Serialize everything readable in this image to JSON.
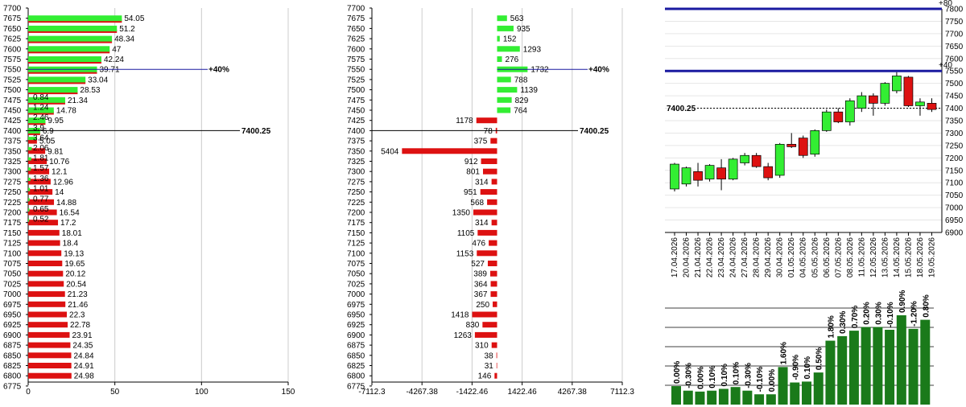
{
  "colors": {
    "call": "#33ee33",
    "put": "#dd1111",
    "grid": "#cccccc",
    "level": "#1a1aa0",
    "bar": "#1a7a1a"
  },
  "chart_data": [
    {
      "type": "bar",
      "orientation": "horizontal",
      "strike_ticks": [
        "7700",
        "7675",
        "7650",
        "7625",
        "7600",
        "7575",
        "7550",
        "7525",
        "7500",
        "7475",
        "7450",
        "7425",
        "7400",
        "7375",
        "7350",
        "7325",
        "7300",
        "7275",
        "7250",
        "7225",
        "7200",
        "7175",
        "7150",
        "7125",
        "7100",
        "7075",
        "7050",
        "7025",
        "7000",
        "6975",
        "6950",
        "6925",
        "6900",
        "6875",
        "6850",
        "6825",
        "6800",
        "6775"
      ],
      "xticks": [
        "0",
        "50",
        "100",
        "150"
      ],
      "xlim": [
        0,
        150
      ],
      "series": [
        {
          "values": [
            {
              "strike": 7675,
              "v": 54.05,
              "label": "54.05"
            },
            {
              "strike": 7650,
              "v": 51.2,
              "label": "51.2"
            },
            {
              "strike": 7625,
              "v": 48.34,
              "label": "48.34"
            },
            {
              "strike": 7600,
              "v": 47,
              "label": "47"
            },
            {
              "strike": 7575,
              "v": 42.24,
              "label": "42.24"
            },
            {
              "strike": 7550,
              "v": 39.71,
              "label": "39.71"
            },
            {
              "strike": 7525,
              "v": 33.04,
              "label": "33.04"
            },
            {
              "strike": 7500,
              "v": 28.53,
              "label": "28.53"
            },
            {
              "strike": 7475,
              "v": 21.34,
              "label": "21.34"
            },
            {
              "strike": 7450,
              "v": 14.78,
              "label": "14.78"
            },
            {
              "strike": 7425,
              "v": 9.95,
              "label": "9.95"
            },
            {
              "strike": 7400,
              "v": 6.9,
              "label": "6.9"
            },
            {
              "strike": 7375,
              "v": 5.05,
              "label": "5.05"
            },
            {
              "strike": 7350,
              "v": 9.81,
              "label": "9.81"
            },
            {
              "strike": 7325,
              "v": 10.76,
              "label": "10.76"
            },
            {
              "strike": 7300,
              "v": 12.1,
              "label": "12.1"
            },
            {
              "strike": 7275,
              "v": 12.96,
              "label": "12.96"
            },
            {
              "strike": 7250,
              "v": 14,
              "label": "14"
            },
            {
              "strike": 7225,
              "v": 14.88,
              "label": "14.88"
            },
            {
              "strike": 7200,
              "v": 16.54,
              "label": "16.54"
            },
            {
              "strike": 7175,
              "v": 17.2,
              "label": "17.2"
            },
            {
              "strike": 7150,
              "v": 18.01,
              "label": "18.01"
            },
            {
              "strike": 7125,
              "v": 18.4,
              "label": "18.4"
            },
            {
              "strike": 7100,
              "v": 19.13,
              "label": "19.13"
            },
            {
              "strike": 7075,
              "v": 19.65,
              "label": "19.65"
            },
            {
              "strike": 7050,
              "v": 20.12,
              "label": "20.12"
            },
            {
              "strike": 7025,
              "v": 20.54,
              "label": "20.54"
            },
            {
              "strike": 7000,
              "v": 21.23,
              "label": "21.23"
            },
            {
              "strike": 6975,
              "v": 21.46,
              "label": "21.46"
            },
            {
              "strike": 6950,
              "v": 22.3,
              "label": "22.3"
            },
            {
              "strike": 6925,
              "v": 22.78,
              "label": "22.78"
            },
            {
              "strike": 6900,
              "v": 23.91,
              "label": "23.91"
            },
            {
              "strike": 6875,
              "v": 24.35,
              "label": "24.35"
            },
            {
              "strike": 6850,
              "v": 24.84,
              "label": "24.84"
            },
            {
              "strike": 6825,
              "v": 24.91,
              "label": "24.91"
            },
            {
              "strike": 6800,
              "v": 24.98,
              "label": "24.98"
            }
          ],
          "color": "#dd1111"
        },
        {
          "values": [
            {
              "strike": 7675,
              "v": 54.05
            },
            {
              "strike": 7650,
              "v": 51.2
            },
            {
              "strike": 7625,
              "v": 48.34
            },
            {
              "strike": 7600,
              "v": 47
            },
            {
              "strike": 7575,
              "v": 42.24
            },
            {
              "strike": 7550,
              "v": 39.71
            },
            {
              "strike": 7525,
              "v": 33.04
            },
            {
              "strike": 7500,
              "v": 28.53
            },
            {
              "strike": 7475,
              "v": 21.34
            },
            {
              "strike": 7450,
              "v": 14.78
            },
            {
              "strike": 7425,
              "v": 9.95
            },
            {
              "strike": 7400,
              "v": 6.9
            },
            {
              "strike": 7375,
              "v": 5.05
            },
            {
              "strike": 7350,
              "v": 2.06,
              "label": "2.06"
            },
            {
              "strike": 7325,
              "v": 1.81,
              "label": "1.81"
            },
            {
              "strike": 7300,
              "v": 1.57,
              "label": "1.57"
            },
            {
              "strike": 7275,
              "v": 1.36,
              "label": "1.36"
            },
            {
              "strike": 7250,
              "v": 1.01,
              "label": "1.01"
            },
            {
              "strike": 7225,
              "v": 0.77,
              "label": "0.77"
            },
            {
              "strike": 7200,
              "v": 0.65,
              "label": "0.65"
            },
            {
              "strike": 7175,
              "v": 0.52,
              "label": "0.52"
            }
          ],
          "color": "#33ee33"
        }
      ],
      "small_labels": [
        {
          "strike": 7475,
          "label": "0.84"
        },
        {
          "strike": 7450,
          "label": "1.24"
        },
        {
          "strike": 7425,
          "label": "2.46"
        },
        {
          "strike": 7400,
          "label": "3.9"
        },
        {
          "strike": 7375,
          "label": "3.64"
        }
      ],
      "annotations": [
        {
          "strike": 7550,
          "text": "+40%"
        },
        {
          "strike": 7400,
          "text": "7400.25"
        }
      ]
    },
    {
      "type": "bar",
      "orientation": "horizontal-diverging",
      "strike_ticks": [
        "7700",
        "7675",
        "7650",
        "7625",
        "7600",
        "7575",
        "7550",
        "7525",
        "7500",
        "7475",
        "7450",
        "7425",
        "7400",
        "7375",
        "7350",
        "7325",
        "7300",
        "7275",
        "7250",
        "7225",
        "7200",
        "7175",
        "7150",
        "7125",
        "7100",
        "7075",
        "7050",
        "7025",
        "7000",
        "6975",
        "6950",
        "6925",
        "6900",
        "6875",
        "6850",
        "6825",
        "6800",
        "6775"
      ],
      "xticks": [
        "-7112.3",
        "-4267.38",
        "-1422.46",
        "1422.46",
        "4267.38",
        "7112.3"
      ],
      "xlim": [
        -7112.3,
        7112.3
      ],
      "values": [
        {
          "strike": 7675,
          "v": 563
        },
        {
          "strike": 7650,
          "v": 935
        },
        {
          "strike": 7625,
          "v": 152
        },
        {
          "strike": 7600,
          "v": 1293
        },
        {
          "strike": 7575,
          "v": 276
        },
        {
          "strike": 7550,
          "v": 1732
        },
        {
          "strike": 7525,
          "v": 788
        },
        {
          "strike": 7500,
          "v": 1139
        },
        {
          "strike": 7475,
          "v": 829
        },
        {
          "strike": 7450,
          "v": 764
        },
        {
          "strike": 7425,
          "v": -1178
        },
        {
          "strike": 7400,
          "v": -78
        },
        {
          "strike": 7375,
          "v": -375
        },
        {
          "strike": 7350,
          "v": -5404
        },
        {
          "strike": 7325,
          "v": -912
        },
        {
          "strike": 7300,
          "v": -801
        },
        {
          "strike": 7275,
          "v": -314
        },
        {
          "strike": 7250,
          "v": -951
        },
        {
          "strike": 7225,
          "v": -568
        },
        {
          "strike": 7200,
          "v": -1350
        },
        {
          "strike": 7175,
          "v": -314
        },
        {
          "strike": 7150,
          "v": -1105
        },
        {
          "strike": 7125,
          "v": -476
        },
        {
          "strike": 7100,
          "v": -1153
        },
        {
          "strike": 7075,
          "v": -527
        },
        {
          "strike": 7050,
          "v": -389
        },
        {
          "strike": 7025,
          "v": -364
        },
        {
          "strike": 7000,
          "v": -367
        },
        {
          "strike": 6975,
          "v": -250
        },
        {
          "strike": 6950,
          "v": -1418
        },
        {
          "strike": 6925,
          "v": -830
        },
        {
          "strike": 6900,
          "v": -1263
        },
        {
          "strike": 6875,
          "v": -310
        },
        {
          "strike": 6850,
          "v": -38
        },
        {
          "strike": 6825,
          "v": -31
        },
        {
          "strike": 6800,
          "v": -146
        }
      ],
      "labels": [
        "563",
        "935",
        "152",
        "1293",
        "276",
        "1732",
        "788",
        "1139",
        "829",
        "764",
        "1178",
        "78",
        "375",
        "5404",
        "912",
        "801",
        "314",
        "951",
        "568",
        "1350",
        "314",
        "1105",
        "476",
        "1153",
        "527",
        "389",
        "364",
        "367",
        "250",
        "1418",
        "830",
        "1263",
        "310",
        "38",
        "31",
        "146"
      ],
      "annotations": [
        {
          "strike": 7550,
          "text": "+40%"
        },
        {
          "strike": 7400,
          "text": "7400.25"
        }
      ]
    },
    {
      "type": "candlestick",
      "dates": [
        "17.04.2026",
        "20.04.2026",
        "21.04.2026",
        "22.04.2026",
        "23.04.2026",
        "24.04.2026",
        "27.04.2026",
        "28.04.2026",
        "29.04.2026",
        "30.04.2026",
        "01.05.2026",
        "04.05.2026",
        "05.05.2026",
        "06.05.2026",
        "07.05.2026",
        "08.05.2026",
        "11.05.2026",
        "12.05.2026",
        "13.05.2026",
        "14.05.2026",
        "15.05.2026",
        "18.05.2026",
        "19.05.2026"
      ],
      "candles": [
        {
          "o": 7075,
          "c": 7175,
          "h": 7180,
          "l": 7065
        },
        {
          "o": 7095,
          "c": 7160,
          "h": 7165,
          "l": 7085
        },
        {
          "o": 7145,
          "c": 7110,
          "h": 7180,
          "l": 7085
        },
        {
          "o": 7115,
          "c": 7170,
          "h": 7175,
          "l": 7105
        },
        {
          "o": 7160,
          "c": 7115,
          "h": 7195,
          "l": 7070
        },
        {
          "o": 7115,
          "c": 7195,
          "h": 7200,
          "l": 7110
        },
        {
          "o": 7180,
          "c": 7210,
          "h": 7220,
          "l": 7170
        },
        {
          "o": 7210,
          "c": 7165,
          "h": 7220,
          "l": 7160
        },
        {
          "o": 7165,
          "c": 7120,
          "h": 7180,
          "l": 7110
        },
        {
          "o": 7130,
          "c": 7255,
          "h": 7260,
          "l": 7120
        },
        {
          "o": 7255,
          "c": 7245,
          "h": 7300,
          "l": 7240
        },
        {
          "o": 7280,
          "c": 7210,
          "h": 7290,
          "l": 7200
        },
        {
          "o": 7215,
          "c": 7310,
          "h": 7315,
          "l": 7205
        },
        {
          "o": 7310,
          "c": 7385,
          "h": 7395,
          "l": 7305
        },
        {
          "o": 7385,
          "c": 7345,
          "h": 7400,
          "l": 7340
        },
        {
          "o": 7345,
          "c": 7430,
          "h": 7440,
          "l": 7330
        },
        {
          "o": 7400,
          "c": 7450,
          "h": 7465,
          "l": 7385
        },
        {
          "o": 7450,
          "c": 7420,
          "h": 7460,
          "l": 7370
        },
        {
          "o": 7420,
          "c": 7500,
          "h": 7505,
          "l": 7410
        },
        {
          "o": 7470,
          "c": 7530,
          "h": 7545,
          "l": 7460
        },
        {
          "o": 7525,
          "c": 7410,
          "h": 7530,
          "l": 7405
        },
        {
          "o": 7410,
          "c": 7425,
          "h": 7440,
          "l": 7370
        },
        {
          "o": 7420,
          "c": 7395,
          "h": 7440,
          "l": 7385
        }
      ],
      "ylim": [
        6900,
        7800
      ],
      "yticks": [
        "7800",
        "7750",
        "7700",
        "7650",
        "7600",
        "7550",
        "7500",
        "7450",
        "7400",
        "7350",
        "7300",
        "7250",
        "7200",
        "7150",
        "7100",
        "7050",
        "7000",
        "6950",
        "6900"
      ],
      "levels": [
        {
          "value": 7800,
          "label": "+80"
        },
        {
          "value": 7550,
          "label": "+40"
        }
      ],
      "current": {
        "value": 7400.25,
        "label": "7400.25"
      }
    },
    {
      "type": "bar",
      "categories": [
        "17.04.2026",
        "20.04.2026",
        "21.04.2026",
        "22.04.2026",
        "23.04.2026",
        "24.04.2026",
        "27.04.2026",
        "28.04.2026",
        "29.04.2026",
        "30.04.2026",
        "01.05.2026",
        "04.05.2026",
        "05.05.2026",
        "06.05.2026",
        "07.05.2026",
        "08.05.2026",
        "11.05.2026",
        "12.05.2026",
        "13.05.2026",
        "14.05.2026",
        "15.05.2026",
        "18.05.2026",
        "19.05.2026"
      ],
      "values": [
        15,
        10,
        9,
        10,
        12,
        14,
        10,
        6,
        6,
        36,
        19,
        20,
        30,
        65,
        70,
        76,
        80,
        80,
        77,
        93,
        78,
        88,
        0
      ],
      "labels": [
        "0.00%",
        "-0.30%",
        "0.00%",
        "0.10%",
        "0.10%",
        "0.10%",
        "-0.30%",
        "-0.10%",
        "0.00%",
        "1.60%",
        "-0.90%",
        "0.10%",
        "0.50%",
        "1.80%",
        "0.30%",
        "0.70%",
        "0.20%",
        "0.30%",
        "-0.10%",
        "0.90%",
        "-1.20%",
        "0.80%",
        ""
      ]
    }
  ]
}
